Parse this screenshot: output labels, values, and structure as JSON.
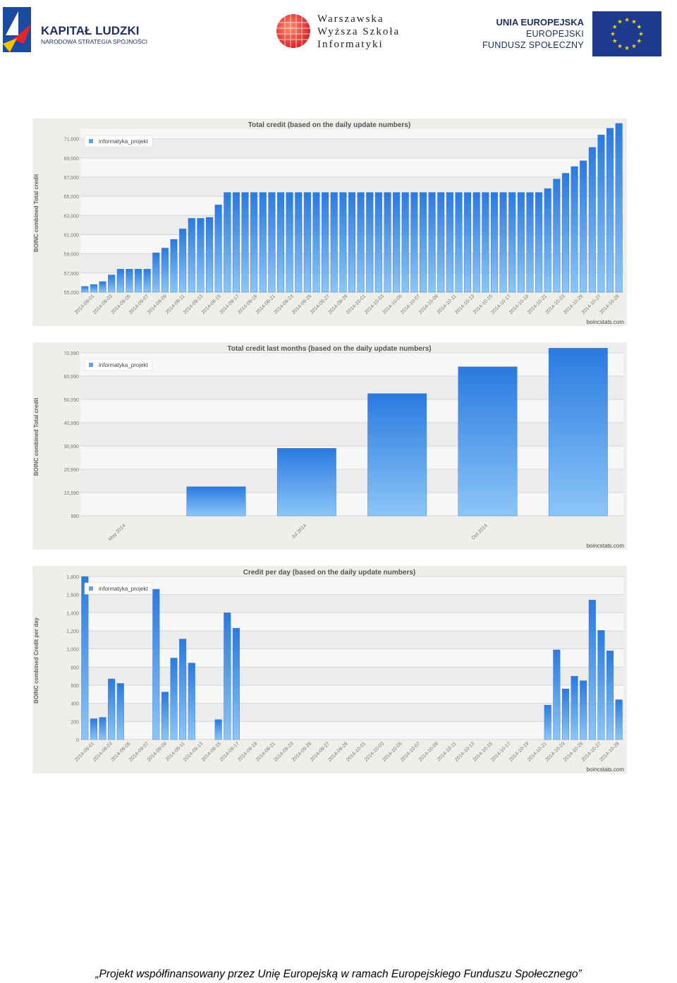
{
  "header": {
    "kapital_title": "KAPITAŁ LUDZKI",
    "kapital_subtitle": "NARODOWA STRATEGIA SPÓJNOŚCI",
    "wwsi_line1": "Warszawska",
    "wwsi_line2": "Wyższa Szkoła",
    "wwsi_line3": "Informatyki",
    "ue_line1": "UNIA EUROPEJSKA",
    "ue_line2": "EUROPEJSKI",
    "ue_line3": "FUNDUSZ SPOŁECZNY"
  },
  "footer_text": "„Projekt współfinansowany przez Unię Europejską w ramach Europejskiego Funduszu Społecznego”",
  "chart_data": [
    {
      "type": "bar",
      "title": "Total credit  (based on the daily update numbers)",
      "ylabel": "BOINC combined Total credit",
      "xlabel": "",
      "source": "boincstats.com",
      "legend": "informatyka_projekt",
      "legend_position": "top-left",
      "grid": true,
      "color": "#2e7fe0",
      "ylim": [
        55000,
        72000
      ],
      "yticks": [
        "55,000",
        "57,000",
        "59,000",
        "61,000",
        "63,000",
        "65,000",
        "67,000",
        "69,000",
        "71,000"
      ],
      "ytick_values": [
        55000,
        57000,
        59000,
        61000,
        63000,
        65000,
        67000,
        69000,
        71000
      ],
      "xticks": [
        "2014-09-01",
        "2014-09-03",
        "2014-09-05",
        "2014-09-07",
        "2014-09-09",
        "2014-09-11",
        "2014-09-13",
        "2014-09-15",
        "2014-09-17",
        "2014-09-19",
        "2014-09-21",
        "2014-09-23",
        "2014-09-25",
        "2014-09-27",
        "2014-09-29",
        "2014-10-01",
        "2014-10-03",
        "2014-10-05",
        "2014-10-07",
        "2014-10-09",
        "2014-10-11",
        "2014-10-13",
        "2014-10-15",
        "2014-10-17",
        "2014-10-19",
        "2014-10-21",
        "2014-10-23",
        "2014-10-25",
        "2014-10-27",
        "2014-10-29"
      ],
      "values": [
        55600,
        55800,
        56100,
        56800,
        57400,
        57400,
        57400,
        57400,
        59100,
        59600,
        60500,
        61600,
        62700,
        62700,
        62800,
        64100,
        65400,
        65400,
        65400,
        65400,
        65400,
        65400,
        65400,
        65400,
        65400,
        65400,
        65400,
        65400,
        65400,
        65400,
        65400,
        65400,
        65400,
        65400,
        65400,
        65400,
        65400,
        65400,
        65400,
        65400,
        65400,
        65400,
        65400,
        65400,
        65400,
        65400,
        65400,
        65400,
        65400,
        65400,
        65400,
        65400,
        65800,
        66800,
        67400,
        68100,
        68700,
        70100,
        71400,
        72100,
        72600
      ]
    },
    {
      "type": "bar",
      "title": "Total credit last months (based on the daily update numbers)",
      "ylabel": "BOINC combined Total credit",
      "xlabel": "",
      "source": "boincstats.com",
      "legend": "informatyka_projekt",
      "legend_position": "top-left",
      "grid": true,
      "color": "#2e7fe0",
      "ylim": [
        990,
        71000
      ],
      "yticks": [
        "990",
        "10,990",
        "20,990",
        "30,990",
        "40,990",
        "50,990",
        "60,990",
        "70,990"
      ],
      "ytick_values": [
        990,
        10990,
        20990,
        30990,
        40990,
        50990,
        60990,
        70990
      ],
      "xticks": [
        "May 2014",
        "Jul 2014",
        "Oct 2014"
      ],
      "xtick_positions": [
        0.5,
        2.5,
        4.5
      ],
      "values": [
        0,
        13500,
        30000,
        53500,
        65000,
        73000
      ]
    },
    {
      "type": "bar",
      "title": "Credit per day  (based on the daily update numbers)",
      "ylabel": "BOINC combined Credit per day",
      "xlabel": "",
      "source": "boincstats.com",
      "legend": "informatyka_projekt",
      "legend_position": "top-left",
      "grid": true,
      "color": "#2e7fe0",
      "ylim": [
        0,
        1800
      ],
      "yticks": [
        "0",
        "200",
        "400",
        "600",
        "800",
        "1,000",
        "1,200",
        "1,400",
        "1,600",
        "1,800"
      ],
      "ytick_values": [
        0,
        200,
        400,
        600,
        800,
        1000,
        1200,
        1400,
        1600,
        1800
      ],
      "xticks": [
        "2014-09-01",
        "2014-09-03",
        "2014-09-05",
        "2014-09-07",
        "2014-09-09",
        "2014-09-11",
        "2014-09-13",
        "2014-09-15",
        "2014-09-17",
        "2014-09-19",
        "2014-09-21",
        "2014-09-23",
        "2014-09-25",
        "2014-09-27",
        "2014-09-29",
        "2014-10-01",
        "2014-10-03",
        "2014-10-05",
        "2014-10-07",
        "2014-10-09",
        "2014-10-11",
        "2014-10-13",
        "2014-10-15",
        "2014-10-17",
        "2014-10-19",
        "2014-10-21",
        "2014-10-23",
        "2014-10-25",
        "2014-10-27",
        "2014-10-29"
      ],
      "values": [
        1800,
        230,
        245,
        670,
        620,
        0,
        0,
        0,
        1660,
        525,
        900,
        1110,
        845,
        0,
        0,
        220,
        1400,
        1230,
        0,
        0,
        0,
        0,
        0,
        0,
        0,
        0,
        0,
        0,
        0,
        0,
        0,
        0,
        0,
        0,
        0,
        0,
        0,
        0,
        0,
        0,
        0,
        0,
        0,
        0,
        0,
        0,
        0,
        0,
        0,
        0,
        0,
        0,
        380,
        990,
        560,
        700,
        650,
        1540,
        1205,
        980,
        440
      ]
    }
  ]
}
